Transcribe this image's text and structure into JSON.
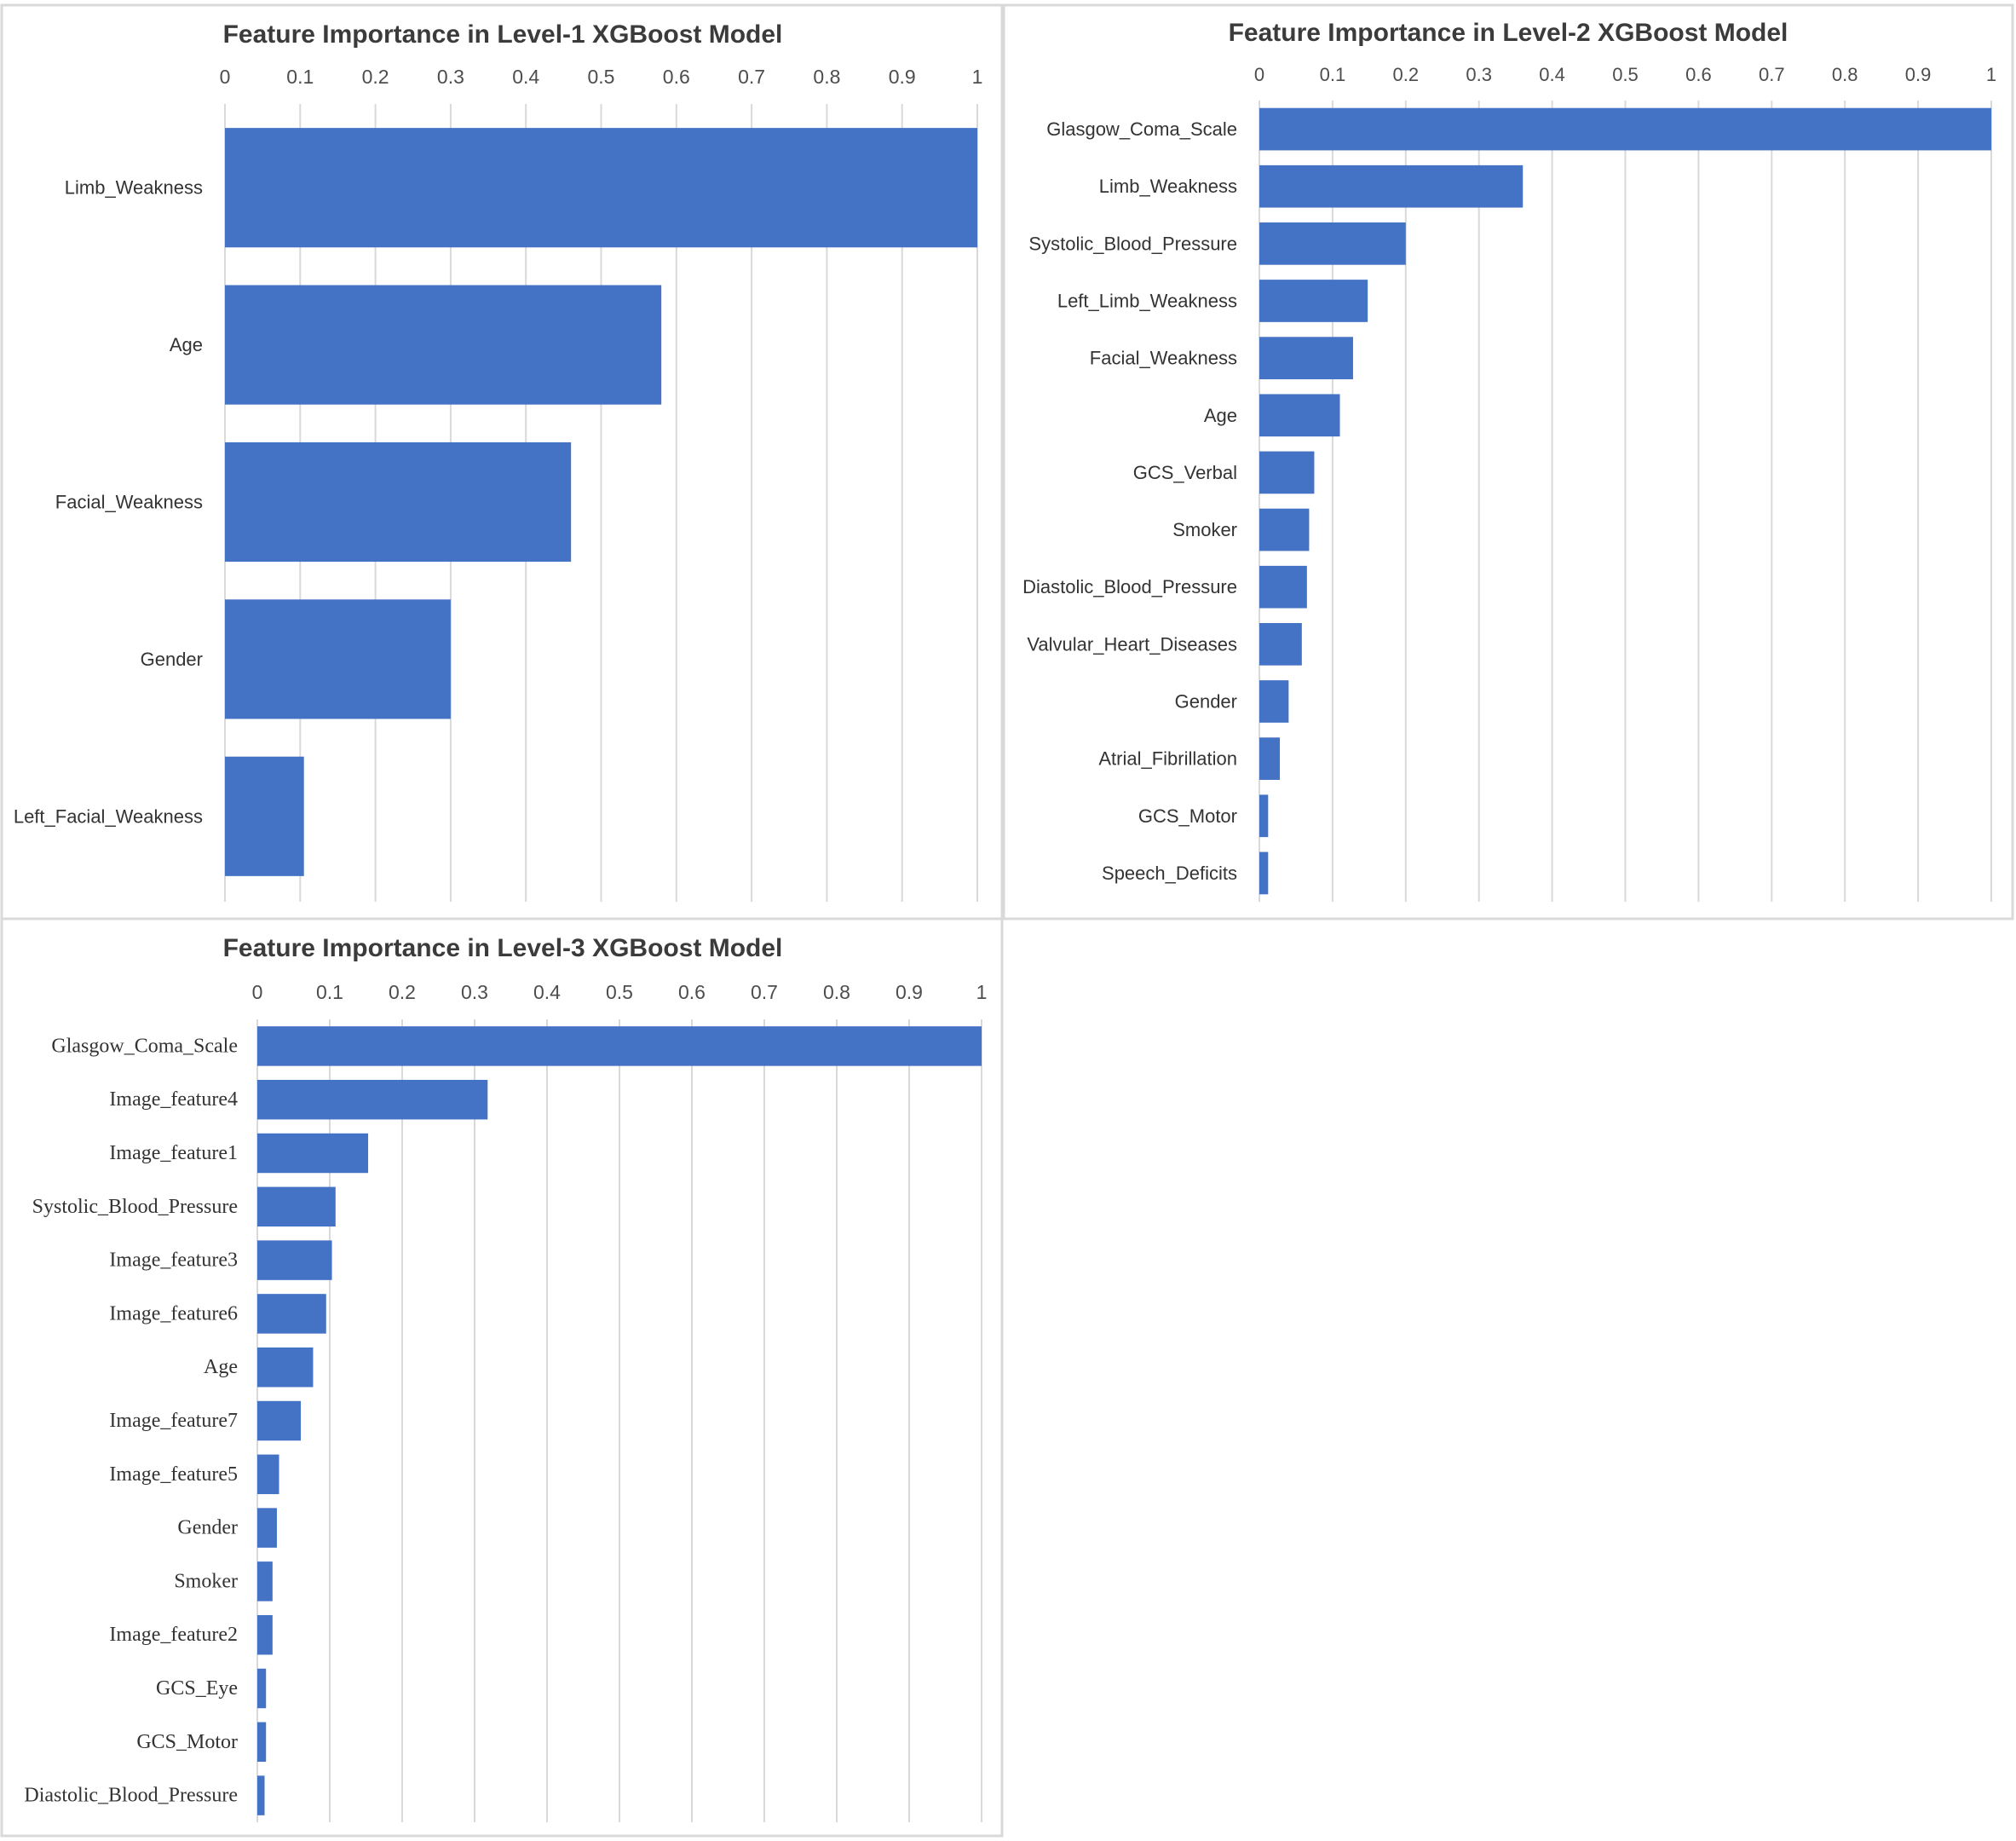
{
  "colors": {
    "bar": "#4472c4",
    "grid": "#d9d9d9",
    "text": "#333333"
  },
  "chart_data": [
    {
      "type": "bar",
      "orientation": "horizontal",
      "title": "Feature Importance in Level-1 XGBoost Model",
      "xlim": [
        0,
        1
      ],
      "ticks": [
        0,
        0.1,
        0.2,
        0.3,
        0.4,
        0.5,
        0.6,
        0.7,
        0.8,
        0.9,
        1
      ],
      "tick_labels": [
        "0",
        "0.1",
        "0.2",
        "0.3",
        "0.4",
        "0.5",
        "0.6",
        "0.7",
        "0.8",
        "0.9",
        "1"
      ],
      "axis_position": "top",
      "grid": true,
      "categories": [
        "Limb_Weakness",
        "Age",
        "Facial_Weakness",
        "Gender",
        "Left_Facial_Weakness"
      ],
      "values": [
        1.0,
        0.58,
        0.46,
        0.3,
        0.105
      ]
    },
    {
      "type": "bar",
      "orientation": "horizontal",
      "title": "Feature Importance in Level-2 XGBoost Model",
      "xlim": [
        0,
        1
      ],
      "ticks": [
        0,
        0.1,
        0.2,
        0.3,
        0.4,
        0.5,
        0.6,
        0.7,
        0.8,
        0.9,
        1
      ],
      "tick_labels": [
        "0",
        "0.1",
        "0.2",
        "0.3",
        "0.4",
        "0.5",
        "0.6",
        "0.7",
        "0.8",
        "0.9",
        "1"
      ],
      "axis_position": "top",
      "grid": true,
      "categories": [
        "Glasgow_Coma_Scale",
        "Limb_Weakness",
        "Systolic_Blood_Pressure",
        "Left_Limb_Weakness",
        "Facial_Weakness",
        "Age",
        "GCS_Verbal",
        "Smoker",
        "Diastolic_Blood_Pressure",
        "Valvular_Heart_Diseases",
        "Gender",
        "Atrial_Fibrillation",
        "GCS_Motor",
        "Speech_Deficits"
      ],
      "values": [
        1.0,
        0.36,
        0.2,
        0.148,
        0.128,
        0.11,
        0.075,
        0.068,
        0.065,
        0.058,
        0.04,
        0.028,
        0.012,
        0.012
      ]
    },
    {
      "type": "bar",
      "orientation": "horizontal",
      "title": "Feature Importance in Level-3 XGBoost Model",
      "xlim": [
        0,
        1
      ],
      "ticks": [
        0,
        0.1,
        0.2,
        0.3,
        0.4,
        0.5,
        0.6,
        0.7,
        0.8,
        0.9,
        1
      ],
      "tick_labels": [
        "0",
        "0.1",
        "0.2",
        "0.3",
        "0.4",
        "0.5",
        "0.6",
        "0.7",
        "0.8",
        "0.9",
        "1"
      ],
      "axis_position": "top",
      "grid": true,
      "categories": [
        "Glasgow_Coma_Scale",
        "Image_feature4",
        "Image_feature1",
        "Systolic_Blood_Pressure",
        "Image_feature3",
        "Image_feature6",
        "Age",
        "Image_feature7",
        "Image_feature5",
        "Gender",
        "Smoker",
        "Image_feature2",
        "GCS_Eye",
        "GCS_Motor",
        "Diastolic_Blood_Pressure"
      ],
      "values": [
        1.0,
        0.318,
        0.153,
        0.108,
        0.103,
        0.095,
        0.077,
        0.06,
        0.03,
        0.027,
        0.021,
        0.021,
        0.012,
        0.012,
        0.01
      ]
    }
  ]
}
